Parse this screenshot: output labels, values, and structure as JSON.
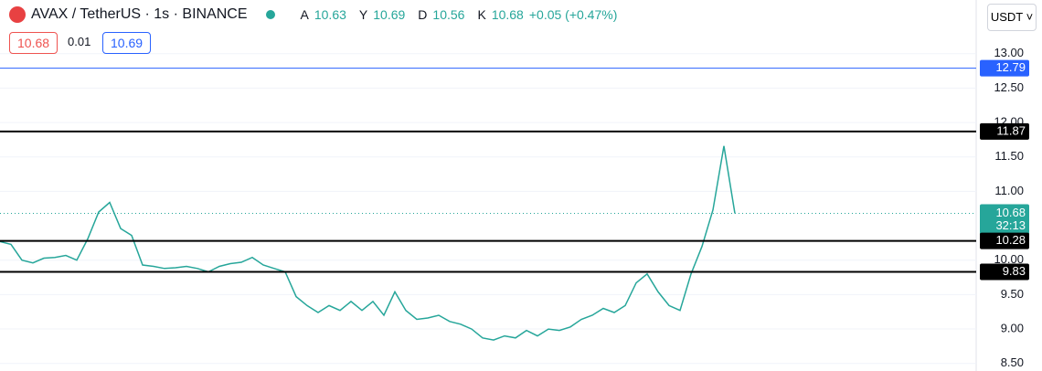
{
  "header": {
    "symbol": "AVAX / TetherUS · 1s · BINANCE",
    "ohlc": [
      {
        "key": "A",
        "value": "10.63"
      },
      {
        "key": "Y",
        "value": "10.69"
      },
      {
        "key": "D",
        "value": "10.56"
      },
      {
        "key": "K",
        "value": "10.68"
      }
    ],
    "change": "+0.05 (+0.47%)",
    "bid": "10.68",
    "spread": "0.01",
    "ask": "10.69",
    "currency": "USDT"
  },
  "chart_data": {
    "type": "line",
    "color": "#26a69a",
    "values": [
      10.27,
      10.23,
      10.0,
      9.96,
      10.03,
      10.04,
      10.07,
      10.0,
      10.31,
      10.7,
      10.84,
      10.46,
      10.36,
      9.93,
      9.91,
      9.88,
      9.89,
      9.91,
      9.88,
      9.83,
      9.91,
      9.95,
      9.97,
      10.04,
      9.93,
      9.88,
      9.83,
      9.47,
      9.34,
      9.24,
      9.34,
      9.27,
      9.4,
      9.27,
      9.4,
      9.2,
      9.54,
      9.27,
      9.14,
      9.16,
      9.2,
      9.11,
      9.07,
      9.0,
      8.87,
      8.84,
      8.9,
      8.87,
      8.98,
      8.9,
      9.0,
      8.98,
      9.03,
      9.14,
      9.2,
      9.3,
      9.24,
      9.34,
      9.67,
      9.8,
      9.54,
      9.34,
      9.27,
      9.8,
      10.2,
      10.73,
      11.66,
      10.68
    ],
    "ylim": [
      8.39,
      13.78
    ],
    "yticks": [
      {
        "value": 13,
        "label": "13.00"
      },
      {
        "value": 12.5,
        "label": "12.50"
      },
      {
        "value": 12,
        "label": "12.00"
      },
      {
        "value": 11.5,
        "label": "11.50"
      },
      {
        "value": 11,
        "label": "11.00"
      },
      {
        "value": 10,
        "label": "10.00"
      },
      {
        "value": 9.5,
        "label": "9.50"
      },
      {
        "value": 9,
        "label": "9.00"
      },
      {
        "value": 8.5,
        "label": "8.50"
      }
    ],
    "grid": true,
    "price_lines": [
      {
        "value": 12.79,
        "label": "12.79",
        "color": "#2962ff"
      },
      {
        "value": 11.87,
        "label": "11.87",
        "color": "#000000"
      },
      {
        "value": 10.28,
        "label": "10.28",
        "color": "#000000"
      },
      {
        "value": 9.83,
        "label": "9.83",
        "color": "#000000"
      }
    ],
    "last_price": {
      "value": 10.68,
      "label": "10.68",
      "countdown": "32:13",
      "color": "#26a69a"
    }
  }
}
